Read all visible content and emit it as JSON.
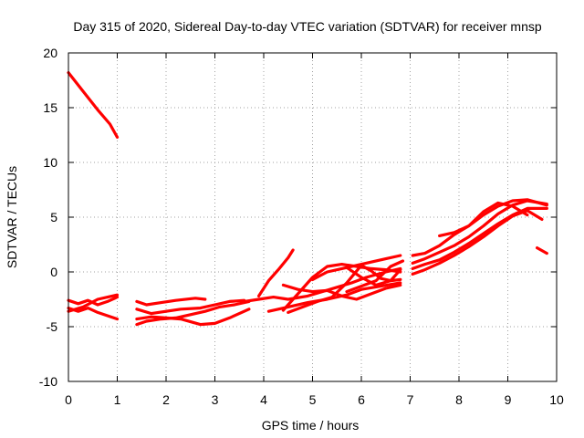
{
  "chart_data": {
    "type": "scatter",
    "title": "Day 315 of 2020, Sidereal Day-to-day VTEC variation (SDTVAR) for receiver mnsp",
    "xlabel": "GPS time / hours",
    "ylabel": "SDTVAR / TECUs",
    "xlim": [
      0,
      10
    ],
    "ylim": [
      -10,
      20
    ],
    "xticks": [
      0,
      1,
      2,
      3,
      4,
      5,
      6,
      7,
      8,
      9,
      10
    ],
    "yticks": [
      -10,
      -5,
      0,
      5,
      10,
      15,
      20
    ],
    "grid": true,
    "color": "#ff0000",
    "series": [
      {
        "name": "s1",
        "x": [
          0.0,
          0.3,
          0.6,
          0.85,
          1.0
        ],
        "y": [
          18.2,
          16.5,
          14.8,
          13.5,
          12.3
        ]
      },
      {
        "name": "s2",
        "x": [
          0.0,
          0.2,
          0.4,
          0.6,
          0.8,
          1.0
        ],
        "y": [
          -2.6,
          -2.9,
          -2.6,
          -3.0,
          -2.7,
          -2.3
        ]
      },
      {
        "name": "s3",
        "x": [
          0.0,
          0.2,
          0.4,
          0.6,
          0.8,
          1.0
        ],
        "y": [
          -3.3,
          -3.6,
          -3.3,
          -3.7,
          -4.0,
          -4.3
        ]
      },
      {
        "name": "s4",
        "x": [
          0.0,
          0.3,
          0.6,
          1.0
        ],
        "y": [
          -3.6,
          -3.2,
          -2.5,
          -2.1
        ]
      },
      {
        "name": "s5",
        "x": [
          1.4,
          1.6,
          1.9,
          2.2,
          2.6,
          2.8
        ],
        "y": [
          -2.7,
          -3.0,
          -2.8,
          -2.6,
          -2.4,
          -2.5
        ]
      },
      {
        "name": "s6",
        "x": [
          1.4,
          1.7,
          2.0,
          2.3,
          2.7,
          3.0,
          3.3,
          3.6
        ],
        "y": [
          -3.4,
          -3.8,
          -3.6,
          -3.4,
          -3.3,
          -3.0,
          -2.7,
          -2.6
        ]
      },
      {
        "name": "s7",
        "x": [
          1.4,
          1.7,
          2.0,
          2.3,
          2.7,
          3.0,
          3.3,
          3.7
        ],
        "y": [
          -4.3,
          -4.1,
          -4.2,
          -4.3,
          -4.8,
          -4.7,
          -4.2,
          -3.4
        ]
      },
      {
        "name": "s8",
        "x": [
          1.4,
          1.6,
          1.9,
          2.2,
          2.5,
          2.8,
          3.1,
          3.4,
          3.7
        ],
        "y": [
          -4.8,
          -4.5,
          -4.3,
          -4.2,
          -3.9,
          -3.6,
          -3.2,
          -3.0,
          -2.7
        ]
      },
      {
        "name": "s9",
        "x": [
          3.6,
          3.9,
          4.2,
          4.5,
          4.9,
          5.2,
          5.5,
          5.8,
          6.1,
          6.5,
          6.8
        ],
        "y": [
          -2.7,
          -2.5,
          -2.3,
          -2.5,
          -2.2,
          -1.8,
          -1.4,
          -1.0,
          -0.5,
          0.0,
          0.3
        ]
      },
      {
        "name": "s10",
        "x": [
          3.9,
          4.1,
          4.3,
          4.5,
          4.6
        ],
        "y": [
          -2.2,
          -0.8,
          0.2,
          1.3,
          2.0
        ]
      },
      {
        "name": "s11",
        "x": [
          4.1,
          4.5,
          4.9,
          5.3,
          5.7,
          6.0,
          6.4,
          6.8
        ],
        "y": [
          -3.6,
          -3.2,
          -2.8,
          -2.5,
          -2.1,
          -1.6,
          -1.3,
          -1.0
        ]
      },
      {
        "name": "s12",
        "x": [
          4.4,
          4.7,
          5.0,
          5.3,
          5.6,
          5.9,
          6.2,
          6.5,
          6.8
        ],
        "y": [
          -3.5,
          -2.0,
          -0.5,
          0.5,
          0.7,
          0.5,
          0.3,
          0.2,
          0.0
        ]
      },
      {
        "name": "s13",
        "x": [
          4.4,
          4.7,
          5.0,
          5.3,
          5.6,
          5.9,
          6.2,
          6.5,
          6.8
        ],
        "y": [
          -1.2,
          -1.6,
          -1.8,
          -1.7,
          -2.2,
          -2.5,
          -2.0,
          -1.5,
          -1.2
        ]
      },
      {
        "name": "s14",
        "x": [
          4.5,
          4.8,
          5.1,
          5.4,
          5.7,
          6.0,
          6.2,
          6.4,
          6.6,
          6.8
        ],
        "y": [
          -3.7,
          -3.2,
          -2.7,
          -2.3,
          -1.0,
          0.6,
          0.1,
          -0.6,
          -0.8,
          -0.7
        ]
      },
      {
        "name": "s15",
        "x": [
          5.0,
          5.3,
          5.6,
          5.9,
          6.2,
          6.5,
          6.8
        ],
        "y": [
          -0.7,
          0.0,
          0.3,
          0.6,
          0.9,
          1.2,
          1.5
        ]
      },
      {
        "name": "s16",
        "x": [
          5.7,
          6.0,
          6.3,
          6.6,
          6.8
        ],
        "y": [
          0.4,
          -0.5,
          -1.2,
          -0.8,
          0.2
        ]
      },
      {
        "name": "s17",
        "x": [
          5.7,
          6.0,
          6.3,
          6.6,
          6.85
        ],
        "y": [
          -1.8,
          -1.3,
          -0.8,
          0.5,
          1.0
        ]
      },
      {
        "name": "s18",
        "x": [
          7.05,
          7.3,
          7.6,
          7.9,
          8.2,
          8.5,
          8.8,
          9.1,
          9.4,
          9.8
        ],
        "y": [
          1.5,
          1.7,
          2.4,
          3.4,
          4.2,
          5.2,
          6.0,
          6.5,
          6.6,
          6.1
        ]
      },
      {
        "name": "s19",
        "x": [
          7.05,
          7.3,
          7.6,
          7.9,
          8.2,
          8.5,
          8.8,
          9.1,
          9.4,
          9.8
        ],
        "y": [
          0.8,
          1.2,
          1.8,
          2.4,
          3.2,
          4.2,
          5.3,
          6.1,
          6.5,
          6.2
        ]
      },
      {
        "name": "s20",
        "x": [
          7.05,
          7.3,
          7.6,
          7.9,
          8.2,
          8.5,
          8.8,
          9.1,
          9.4,
          9.8
        ],
        "y": [
          0.3,
          0.7,
          1.1,
          1.8,
          2.6,
          3.5,
          4.4,
          5.2,
          5.8,
          5.8
        ]
      },
      {
        "name": "s21",
        "x": [
          7.05,
          7.3,
          7.6,
          7.9,
          8.2,
          8.5,
          8.8,
          9.1,
          9.4,
          9.7
        ],
        "y": [
          -0.2,
          0.2,
          0.8,
          1.5,
          2.3,
          3.2,
          4.2,
          5.1,
          5.6,
          4.8
        ]
      },
      {
        "name": "s22",
        "x": [
          7.6,
          7.9,
          8.2,
          8.5,
          8.8,
          9.1,
          9.4
        ],
        "y": [
          3.3,
          3.6,
          4.2,
          5.5,
          6.3,
          6.0,
          5.2
        ]
      },
      {
        "name": "s23",
        "x": [
          9.6,
          9.8
        ],
        "y": [
          2.2,
          1.7
        ]
      }
    ]
  }
}
